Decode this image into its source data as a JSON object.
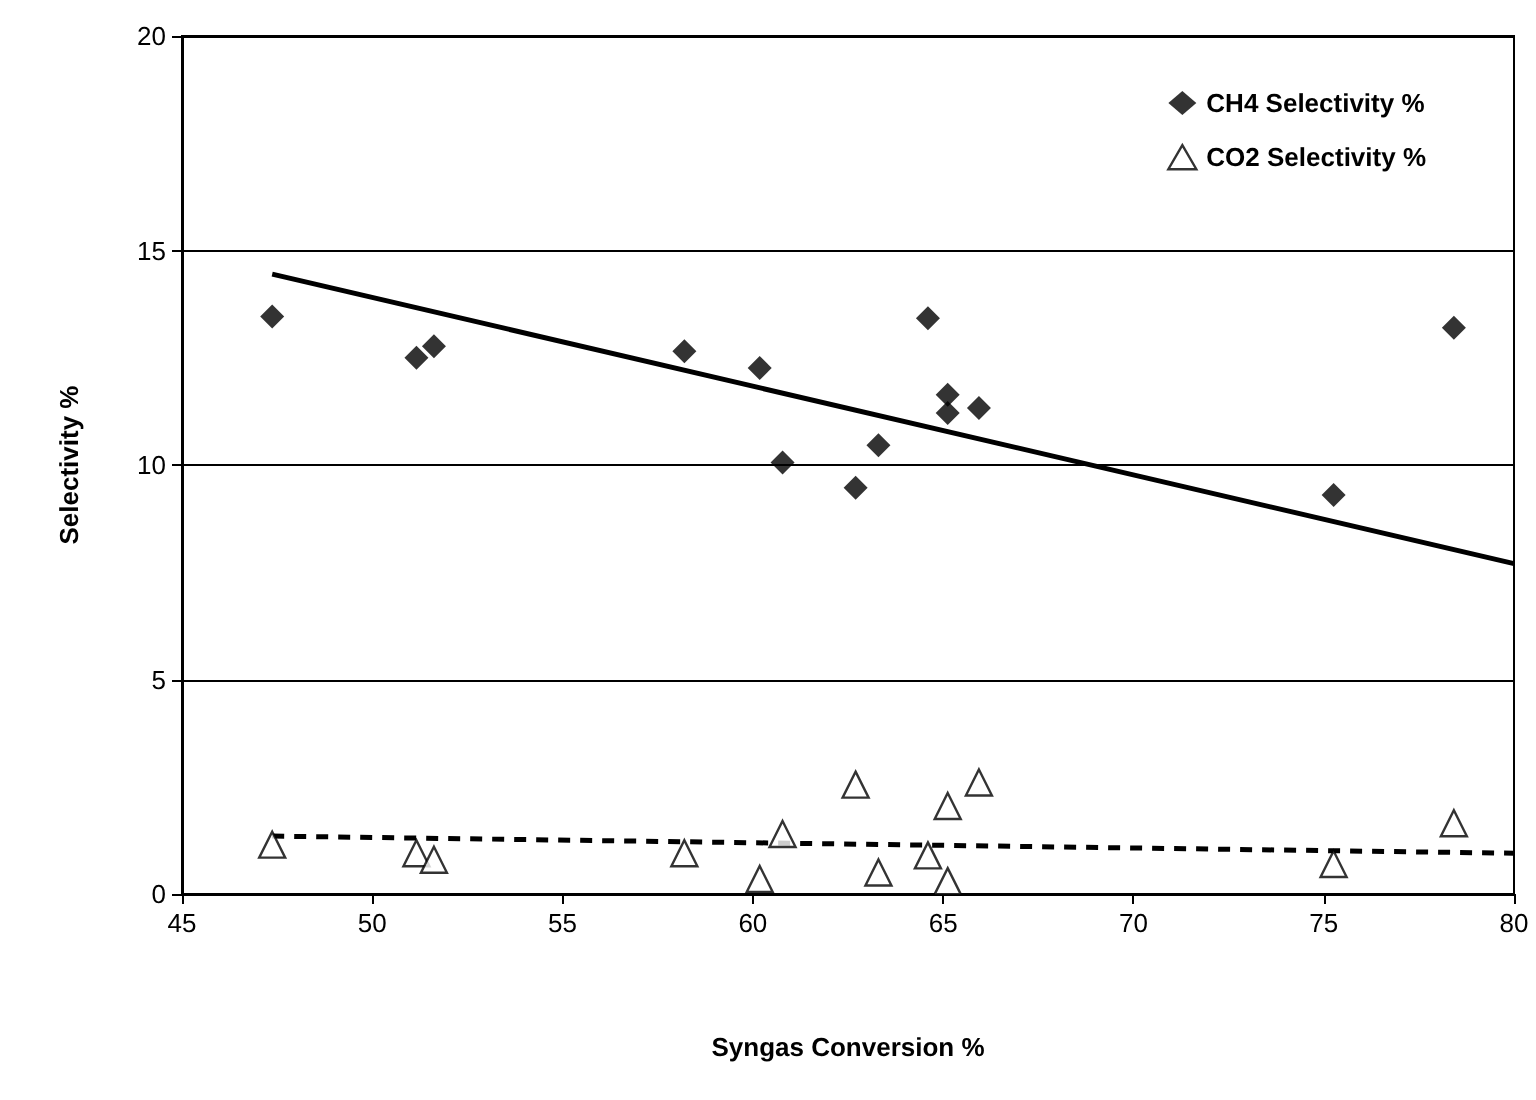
{
  "chart_data": {
    "type": "scatter",
    "xlabel": "Syngas Conversion %",
    "ylabel": "Selectivity %",
    "xlim": [
      45,
      80
    ],
    "xticks": [
      45,
      50,
      55,
      60,
      65,
      70,
      75,
      80
    ],
    "ylim": [
      0,
      20
    ],
    "yticks": [
      0,
      5,
      10,
      15,
      20
    ],
    "grid": "y",
    "legend": "top right",
    "series": [
      {
        "name": "CH4 Selectivity %",
        "color": "#000000",
        "marker": "diamond",
        "x": [
          47.37,
          51.16,
          51.62,
          58.2,
          60.18,
          60.78,
          62.7,
          63.3,
          64.6,
          65.12,
          65.12,
          65.94,
          75.26,
          78.42
        ],
        "values": [
          13.46,
          12.5,
          12.77,
          12.65,
          12.26,
          10.06,
          9.47,
          10.46,
          13.42,
          11.64,
          11.21,
          11.33,
          9.3,
          13.2
        ]
      },
      {
        "name": "CO2 Selectivity %",
        "color": "#000000",
        "marker": "triangle",
        "x": [
          47.37,
          51.16,
          51.62,
          58.2,
          60.18,
          60.78,
          62.7,
          63.3,
          64.6,
          65.12,
          65.12,
          65.94,
          75.26,
          78.42
        ],
        "values": [
          1.15,
          0.95,
          0.8,
          0.95,
          0.35,
          1.4,
          2.55,
          0.5,
          0.9,
          2.05,
          0.3,
          2.6,
          0.7,
          1.65
        ]
      },
      {
        "type": "line",
        "color": "#000000",
        "marker": "none",
        "line_style": "solid",
        "x": [
          47.37,
          80
        ],
        "values": [
          14.45,
          7.7
        ]
      },
      {
        "type": "line",
        "color": "#000000",
        "marker": "none",
        "line_style": "dashed",
        "x": [
          47.37,
          80
        ],
        "values": [
          1.35,
          0.95
        ]
      }
    ]
  }
}
